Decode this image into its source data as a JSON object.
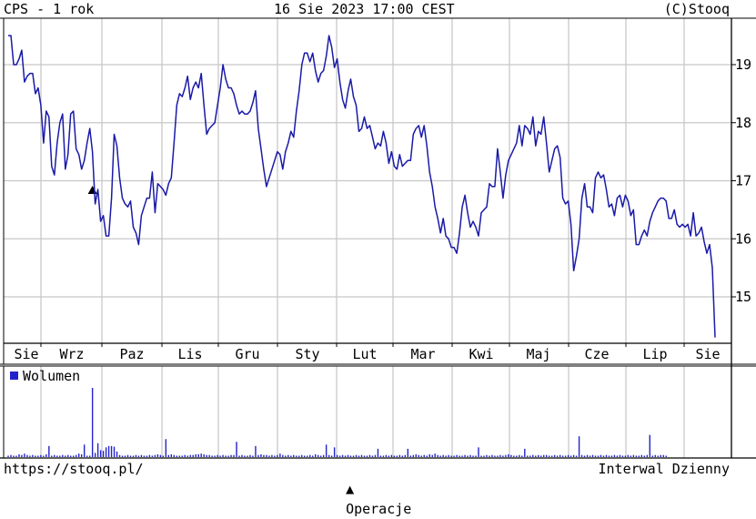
{
  "header": {
    "title": "CPS - 1 rok",
    "datetime": "16 Sie 2023 17:00 CEST",
    "copyright": "(C)Stooq"
  },
  "footer": {
    "url": "https://stooq.pl/",
    "operations_label": "Operacje",
    "interval_label": "Interwal Dzienny"
  },
  "colors": {
    "line": "#1a1aa8",
    "volume": "#2222cc",
    "grid": "#c8c8c8",
    "frame": "#000000"
  },
  "chart_data": {
    "type": "line",
    "months": [
      "Sie",
      "Wrz",
      "Paz",
      "Lis",
      "Gru",
      "Sty",
      "Lut",
      "Mar",
      "Kwi",
      "Maj",
      "Cze",
      "Lip",
      "Sie"
    ],
    "y_ticks": [
      15,
      16,
      17,
      18,
      19
    ],
    "ylim": [
      14.2,
      19.8
    ],
    "x_range": [
      0,
      260
    ],
    "grid": true,
    "price": [
      [
        0,
        19.5
      ],
      [
        1,
        19.5
      ],
      [
        2,
        19.0
      ],
      [
        3,
        19.0
      ],
      [
        4,
        19.1
      ],
      [
        5,
        19.25
      ],
      [
        6,
        18.7
      ],
      [
        7,
        18.8
      ],
      [
        8,
        18.85
      ],
      [
        9,
        18.85
      ],
      [
        10,
        18.5
      ],
      [
        11,
        18.6
      ],
      [
        12,
        18.3
      ],
      [
        13,
        17.65
      ],
      [
        14,
        18.2
      ],
      [
        15,
        18.1
      ],
      [
        16,
        17.25
      ],
      [
        17,
        17.1
      ],
      [
        18,
        17.65
      ],
      [
        19,
        18.0
      ],
      [
        20,
        18.15
      ],
      [
        21,
        17.2
      ],
      [
        22,
        17.45
      ],
      [
        23,
        18.15
      ],
      [
        24,
        18.2
      ],
      [
        25,
        17.55
      ],
      [
        26,
        17.45
      ],
      [
        27,
        17.2
      ],
      [
        28,
        17.35
      ],
      [
        29,
        17.65
      ],
      [
        30,
        17.9
      ],
      [
        31,
        17.5
      ],
      [
        32,
        16.6
      ],
      [
        33,
        16.85
      ],
      [
        34,
        16.3
      ],
      [
        35,
        16.4
      ],
      [
        36,
        16.05
      ],
      [
        37,
        16.05
      ],
      [
        38,
        16.7
      ],
      [
        39,
        17.8
      ],
      [
        40,
        17.6
      ],
      [
        41,
        17.05
      ],
      [
        42,
        16.7
      ],
      [
        43,
        16.6
      ],
      [
        44,
        16.55
      ],
      [
        45,
        16.65
      ],
      [
        46,
        16.2
      ],
      [
        47,
        16.1
      ],
      [
        48,
        15.9
      ],
      [
        49,
        16.4
      ],
      [
        50,
        16.55
      ],
      [
        51,
        16.7
      ],
      [
        52,
        16.7
      ],
      [
        53,
        17.15
      ],
      [
        54,
        16.45
      ],
      [
        55,
        16.95
      ],
      [
        56,
        16.9
      ],
      [
        57,
        16.85
      ],
      [
        58,
        16.75
      ],
      [
        59,
        16.95
      ],
      [
        60,
        17.05
      ],
      [
        61,
        17.65
      ],
      [
        62,
        18.3
      ],
      [
        63,
        18.5
      ],
      [
        64,
        18.45
      ],
      [
        65,
        18.6
      ],
      [
        66,
        18.8
      ],
      [
        67,
        18.4
      ],
      [
        68,
        18.6
      ],
      [
        69,
        18.7
      ],
      [
        70,
        18.6
      ],
      [
        71,
        18.85
      ],
      [
        72,
        18.3
      ],
      [
        73,
        17.8
      ],
      [
        74,
        17.9
      ],
      [
        75,
        17.95
      ],
      [
        76,
        18.0
      ],
      [
        77,
        18.3
      ],
      [
        78,
        18.6
      ],
      [
        79,
        19.0
      ],
      [
        80,
        18.75
      ],
      [
        81,
        18.6
      ],
      [
        82,
        18.6
      ],
      [
        83,
        18.5
      ],
      [
        84,
        18.3
      ],
      [
        85,
        18.15
      ],
      [
        86,
        18.2
      ],
      [
        87,
        18.15
      ],
      [
        88,
        18.15
      ],
      [
        89,
        18.2
      ],
      [
        90,
        18.35
      ],
      [
        91,
        18.55
      ],
      [
        92,
        17.9
      ],
      [
        93,
        17.55
      ],
      [
        94,
        17.2
      ],
      [
        95,
        16.9
      ],
      [
        96,
        17.05
      ],
      [
        97,
        17.2
      ],
      [
        98,
        17.35
      ],
      [
        99,
        17.5
      ],
      [
        100,
        17.45
      ],
      [
        101,
        17.2
      ],
      [
        102,
        17.5
      ],
      [
        103,
        17.65
      ],
      [
        104,
        17.85
      ],
      [
        105,
        17.75
      ],
      [
        106,
        18.2
      ],
      [
        107,
        18.55
      ],
      [
        108,
        19.0
      ],
      [
        109,
        19.2
      ],
      [
        110,
        19.2
      ],
      [
        111,
        19.05
      ],
      [
        112,
        19.2
      ],
      [
        113,
        18.9
      ],
      [
        114,
        18.7
      ],
      [
        115,
        18.85
      ],
      [
        116,
        18.9
      ],
      [
        117,
        19.15
      ],
      [
        118,
        19.5
      ],
      [
        119,
        19.3
      ],
      [
        120,
        18.95
      ],
      [
        121,
        19.1
      ],
      [
        122,
        18.7
      ],
      [
        123,
        18.4
      ],
      [
        124,
        18.25
      ],
      [
        125,
        18.55
      ],
      [
        126,
        18.75
      ],
      [
        127,
        18.45
      ],
      [
        128,
        18.3
      ],
      [
        129,
        17.85
      ],
      [
        130,
        17.9
      ],
      [
        131,
        18.1
      ],
      [
        132,
        17.9
      ],
      [
        133,
        17.95
      ],
      [
        134,
        17.75
      ],
      [
        135,
        17.55
      ],
      [
        136,
        17.65
      ],
      [
        137,
        17.6
      ],
      [
        138,
        17.85
      ],
      [
        139,
        17.65
      ],
      [
        140,
        17.3
      ],
      [
        141,
        17.5
      ],
      [
        142,
        17.25
      ],
      [
        143,
        17.2
      ],
      [
        144,
        17.45
      ],
      [
        145,
        17.25
      ],
      [
        146,
        17.3
      ],
      [
        147,
        17.35
      ],
      [
        148,
        17.35
      ],
      [
        149,
        17.8
      ],
      [
        150,
        17.9
      ],
      [
        151,
        17.95
      ],
      [
        152,
        17.75
      ],
      [
        153,
        17.95
      ],
      [
        154,
        17.6
      ],
      [
        155,
        17.15
      ],
      [
        156,
        16.9
      ],
      [
        157,
        16.55
      ],
      [
        158,
        16.35
      ],
      [
        159,
        16.1
      ],
      [
        160,
        16.35
      ],
      [
        161,
        16.05
      ],
      [
        162,
        16.0
      ],
      [
        163,
        15.85
      ],
      [
        164,
        15.85
      ],
      [
        165,
        15.75
      ],
      [
        166,
        16.1
      ],
      [
        167,
        16.55
      ],
      [
        168,
        16.75
      ],
      [
        169,
        16.45
      ],
      [
        170,
        16.2
      ],
      [
        171,
        16.3
      ],
      [
        172,
        16.2
      ],
      [
        173,
        16.05
      ],
      [
        174,
        16.45
      ],
      [
        175,
        16.5
      ],
      [
        176,
        16.55
      ],
      [
        177,
        16.95
      ],
      [
        178,
        16.9
      ],
      [
        179,
        16.9
      ],
      [
        180,
        17.55
      ],
      [
        181,
        17.15
      ],
      [
        182,
        16.7
      ],
      [
        183,
        17.1
      ],
      [
        184,
        17.35
      ],
      [
        185,
        17.45
      ],
      [
        186,
        17.55
      ],
      [
        187,
        17.65
      ],
      [
        188,
        17.95
      ],
      [
        189,
        17.6
      ],
      [
        190,
        17.95
      ],
      [
        191,
        17.9
      ],
      [
        192,
        17.8
      ],
      [
        193,
        18.1
      ],
      [
        194,
        17.6
      ],
      [
        195,
        17.85
      ],
      [
        196,
        17.8
      ],
      [
        197,
        18.1
      ],
      [
        198,
        17.65
      ],
      [
        199,
        17.15
      ],
      [
        200,
        17.35
      ],
      [
        201,
        17.55
      ],
      [
        202,
        17.6
      ],
      [
        203,
        17.4
      ],
      [
        204,
        16.7
      ],
      [
        205,
        16.6
      ],
      [
        206,
        16.65
      ],
      [
        207,
        16.25
      ],
      [
        208,
        15.45
      ],
      [
        209,
        15.7
      ],
      [
        210,
        16.0
      ],
      [
        211,
        16.7
      ],
      [
        212,
        16.95
      ],
      [
        213,
        16.55
      ],
      [
        214,
        16.55
      ],
      [
        215,
        16.45
      ],
      [
        216,
        17.05
      ],
      [
        217,
        17.15
      ],
      [
        218,
        17.05
      ],
      [
        219,
        17.1
      ],
      [
        220,
        16.85
      ],
      [
        221,
        16.55
      ],
      [
        222,
        16.6
      ],
      [
        223,
        16.4
      ],
      [
        224,
        16.7
      ],
      [
        225,
        16.75
      ],
      [
        226,
        16.55
      ],
      [
        227,
        16.75
      ],
      [
        228,
        16.65
      ],
      [
        229,
        16.4
      ],
      [
        230,
        16.5
      ],
      [
        231,
        15.9
      ],
      [
        232,
        15.9
      ],
      [
        233,
        16.05
      ],
      [
        234,
        16.15
      ],
      [
        235,
        16.05
      ],
      [
        236,
        16.3
      ],
      [
        237,
        16.45
      ],
      [
        238,
        16.55
      ],
      [
        239,
        16.65
      ],
      [
        240,
        16.7
      ],
      [
        241,
        16.7
      ],
      [
        242,
        16.65
      ],
      [
        243,
        16.35
      ],
      [
        244,
        16.35
      ],
      [
        245,
        16.5
      ],
      [
        246,
        16.25
      ],
      [
        247,
        16.2
      ],
      [
        248,
        16.25
      ],
      [
        249,
        16.2
      ],
      [
        250,
        16.25
      ],
      [
        251,
        16.05
      ],
      [
        252,
        16.45
      ],
      [
        253,
        16.05
      ],
      [
        254,
        16.1
      ],
      [
        255,
        16.2
      ],
      [
        256,
        15.95
      ],
      [
        257,
        15.75
      ],
      [
        258,
        15.9
      ],
      [
        259,
        15.5
      ],
      [
        260,
        14.3
      ]
    ],
    "operations": [
      {
        "x": 31,
        "type": "operation"
      }
    ],
    "volume_label": "Wolumen",
    "volume": [
      2,
      3,
      2,
      2,
      4,
      3,
      5,
      3,
      2,
      3,
      2,
      2,
      3,
      2,
      4,
      3,
      2,
      3,
      2,
      2,
      3,
      2,
      3,
      2,
      2,
      3,
      5,
      4,
      3,
      2,
      2,
      3,
      6,
      8,
      10,
      9,
      14,
      16,
      16,
      15,
      8,
      3,
      2,
      2,
      3,
      2,
      2,
      3,
      2,
      3,
      2,
      2,
      3,
      2,
      3,
      4,
      3,
      2,
      2,
      3,
      4,
      3,
      2,
      2,
      2,
      3,
      2,
      3,
      3,
      4,
      4,
      5,
      4,
      3,
      3,
      2,
      2,
      3,
      2,
      3,
      2,
      2,
      3,
      3,
      2,
      2,
      3,
      2,
      2,
      3,
      2,
      2,
      3,
      4,
      3,
      3,
      2,
      3,
      2,
      3,
      5,
      3,
      2,
      3,
      2,
      3,
      2,
      2,
      3,
      2,
      2,
      3,
      2,
      4,
      3,
      2,
      3,
      2,
      3,
      2,
      14,
      3,
      2,
      3,
      2,
      3,
      2,
      2,
      3,
      2,
      3,
      2,
      2,
      3,
      2,
      3,
      3,
      2,
      2,
      3,
      2,
      3,
      2,
      2,
      3,
      2,
      3,
      2,
      2,
      3,
      4,
      3,
      2,
      3,
      2,
      4,
      3,
      5,
      3,
      2,
      3,
      2,
      3,
      2,
      2,
      3,
      2,
      2,
      3,
      2,
      3,
      2,
      2,
      3,
      2,
      2,
      3,
      2,
      3,
      2,
      2,
      3,
      2,
      3,
      4,
      3,
      2,
      2,
      3,
      2,
      3,
      2,
      2,
      3,
      2,
      3,
      2,
      3,
      3,
      2,
      2,
      3,
      2,
      3,
      2,
      2,
      3,
      2,
      3,
      2,
      2,
      3,
      2,
      3,
      2,
      3,
      2,
      2,
      3,
      2,
      3,
      2,
      2,
      3,
      2,
      3,
      2,
      2,
      3,
      2,
      3,
      2,
      2,
      3,
      2,
      3,
      2,
      2,
      3,
      2,
      3,
      3,
      2
    ],
    "volume_peaks": [
      {
        "x": 31,
        "v": 100
      },
      {
        "x": 15,
        "v": 16
      },
      {
        "x": 28,
        "v": 18
      },
      {
        "x": 33,
        "v": 20
      },
      {
        "x": 58,
        "v": 26
      },
      {
        "x": 84,
        "v": 22
      },
      {
        "x": 91,
        "v": 16
      },
      {
        "x": 117,
        "v": 18
      },
      {
        "x": 147,
        "v": 12
      },
      {
        "x": 173,
        "v": 14
      },
      {
        "x": 210,
        "v": 30
      },
      {
        "x": 236,
        "v": 32
      },
      {
        "x": 260,
        "v": 22
      },
      {
        "x": 136,
        "v": 12
      },
      {
        "x": 190,
        "v": 12
      },
      {
        "x": 250,
        "v": 14
      }
    ]
  }
}
